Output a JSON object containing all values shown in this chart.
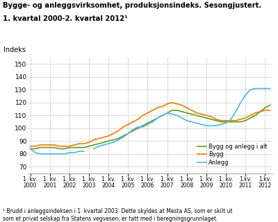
{
  "title_line1": "Bygge- og anleggsvirksomhet, produksjonsindeks. Sesongjustert.",
  "title_line2": "1. kvartal 2000-2. kvartal 2012¹",
  "ylabel": "Indeks",
  "footnote": "¹ Brudd i anleggsindeksen i 1. kvartal 2003. Dette skyldes at Mesta AS, som er skilt ut\nsom et privat selskap fra Statens vegvesen, er tatt med i beregningsgrunnlaget.",
  "ylim": [
    65,
    155
  ],
  "yticks": [
    70,
    80,
    90,
    100,
    110,
    120,
    130,
    140,
    150
  ],
  "legend_labels": [
    "Bygg og anlegg i alt",
    "Bygg",
    "Anlegg"
  ],
  "colors": {
    "bygg_anlegg": "#5b9c1c",
    "bygg": "#f07800",
    "anlegg": "#4db3e6"
  },
  "xtick_labels": [
    "1. kv.\n2000",
    "1. kv.\n2001",
    "1. kv.\n2002",
    "1. kv.\n2003",
    "1. kv.\n2004",
    "1. kv.\n2005",
    "1. kv.\n2006",
    "1. kv.\n2007",
    "1. kv.\n2008",
    "1. kv.\n2009",
    "1. kv.\n2010",
    "1.kv.\n2011",
    "1.kv.\n2012"
  ],
  "bygg_anlegg": [
    84,
    84,
    85,
    85,
    85,
    85,
    84,
    84,
    85,
    85,
    85,
    85,
    86,
    87,
    88,
    89,
    90,
    91,
    92,
    94,
    96,
    98,
    100,
    102,
    104,
    106,
    108,
    110,
    112,
    114,
    114,
    113,
    112,
    111,
    110,
    109,
    108,
    107,
    106,
    105,
    105,
    105,
    105,
    105,
    106,
    108,
    110,
    113,
    116,
    118
  ],
  "bygg": [
    86,
    86,
    87,
    87,
    87,
    87,
    86,
    86,
    86,
    87,
    88,
    88,
    89,
    91,
    92,
    93,
    94,
    96,
    98,
    101,
    103,
    105,
    107,
    110,
    112,
    114,
    116,
    117,
    119,
    120,
    119,
    118,
    116,
    114,
    112,
    111,
    110,
    109,
    107,
    106,
    106,
    106,
    106,
    107,
    108,
    110,
    112,
    113,
    114,
    114
  ],
  "anlegg": [
    84,
    81,
    80,
    80,
    80,
    80,
    80,
    80,
    81,
    81,
    82,
    82,
    null,
    84,
    86,
    87,
    88,
    89,
    91,
    93,
    96,
    99,
    101,
    101,
    103,
    105,
    108,
    110,
    112,
    111,
    110,
    108,
    106,
    105,
    104,
    103,
    102,
    102,
    102,
    103,
    104,
    107,
    113,
    120,
    126,
    130,
    131,
    131,
    131,
    131
  ]
}
